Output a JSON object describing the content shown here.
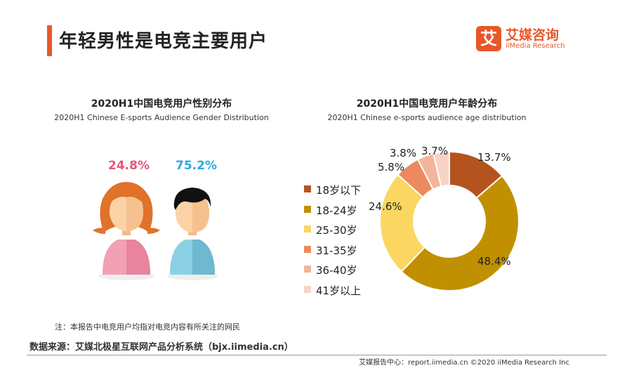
{
  "page": {
    "title": "年轻男性是电竞主要用户",
    "logo_cn": "艾媒咨询",
    "logo_en": "iiMedia Research",
    "logo_mark": "艾",
    "footnote": "注：本报告中电竞用户均指对电竞内容有所关注的网民",
    "source": "数据来源：艾媒北极星互联网产品分析系统（bjx.iimedia.cn）",
    "credit": "艾媒报告中心：report.iimedia.cn    ©2020  iiMedia Research  Inc"
  },
  "colors": {
    "accent": "#e8572a",
    "female_pct": "#e8547a",
    "male_pct": "#29a9e0"
  },
  "chart_data": [
    {
      "type": "pie",
      "title": "2020H1中国电竞用户性别分布",
      "subtitle": "2020H1 Chinese E-sports Audience Gender Distribution",
      "categories": [
        "female",
        "male"
      ],
      "values": [
        24.8,
        75.2
      ],
      "labels": [
        "24.8%",
        "75.2%"
      ]
    },
    {
      "type": "pie",
      "title": "2020H1中国电竞用户年龄分布",
      "subtitle": "2020H1 Chinese e-sports audience age distribution",
      "legend_position": "left",
      "categories": [
        "18岁以下",
        "18-24岁",
        "25-30岁",
        "31-35岁",
        "36-40岁",
        "41岁以上"
      ],
      "values": [
        13.7,
        48.4,
        24.6,
        5.8,
        3.8,
        3.7
      ],
      "labels": [
        "13.7%",
        "48.4%",
        "24.6%",
        "5.8%",
        "3.8%",
        "3.7%"
      ],
      "colors": [
        "#b5531f",
        "#c09000",
        "#fbd661",
        "#ec8a5e",
        "#f2b59a",
        "#f7d3c6"
      ]
    }
  ]
}
